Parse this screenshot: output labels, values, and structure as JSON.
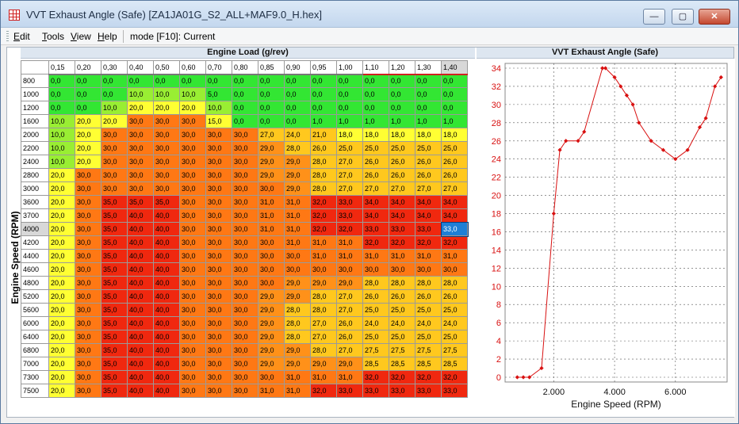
{
  "window": {
    "title": "VVT Exhaust Angle (Safe) [ZA1JA01G_S2_ALL+MAF9.0_H.hex]",
    "min_label": "—",
    "max_label": "▢",
    "close_label": "✕"
  },
  "menu": {
    "items": [
      {
        "key": "E",
        "rest": "dit"
      },
      {
        "key": "T",
        "rest": "ools"
      },
      {
        "key": "V",
        "rest": "iew"
      },
      {
        "key": "H",
        "rest": "elp"
      }
    ],
    "mode_label": "mode [F10]: Current"
  },
  "table": {
    "title": "Engine Load (g/rev)",
    "ylabel": "Engine Speed (RPM)",
    "col_headers": [
      "0,15",
      "0,20",
      "0,30",
      "0,40",
      "0,50",
      "0,60",
      "0,70",
      "0,80",
      "0,85",
      "0,90",
      "0,95",
      "1,00",
      "1,10",
      "1,20",
      "1,30",
      "1,40"
    ],
    "row_headers": [
      "800",
      "1000",
      "1200",
      "1600",
      "2000",
      "2200",
      "2400",
      "2800",
      "3000",
      "3600",
      "3700",
      "4000",
      "4200",
      "4400",
      "4600",
      "4800",
      "5200",
      "5600",
      "6000",
      "6400",
      "6800",
      "7000",
      "7300",
      "7500"
    ],
    "cells": [
      [
        "0,0",
        "0,0",
        "0,0",
        "0,0",
        "0,0",
        "0,0",
        "0,0",
        "0,0",
        "0,0",
        "0,0",
        "0,0",
        "0,0",
        "0,0",
        "0,0",
        "0,0",
        "0,0"
      ],
      [
        "0,0",
        "0,0",
        "0,0",
        "10,0",
        "10,0",
        "10,0",
        "5,0",
        "0,0",
        "0,0",
        "0,0",
        "0,0",
        "0,0",
        "0,0",
        "0,0",
        "0,0",
        "0,0"
      ],
      [
        "0,0",
        "0,0",
        "10,0",
        "20,0",
        "20,0",
        "20,0",
        "10,0",
        "0,0",
        "0,0",
        "0,0",
        "0,0",
        "0,0",
        "0,0",
        "0,0",
        "0,0",
        "0,0"
      ],
      [
        "10,0",
        "20,0",
        "20,0",
        "30,0",
        "30,0",
        "30,0",
        "15,0",
        "0,0",
        "0,0",
        "0,0",
        "1,0",
        "1,0",
        "1,0",
        "1,0",
        "1,0",
        "1,0"
      ],
      [
        "10,0",
        "20,0",
        "30,0",
        "30,0",
        "30,0",
        "30,0",
        "30,0",
        "30,0",
        "27,0",
        "24,0",
        "21,0",
        "18,0",
        "18,0",
        "18,0",
        "18,0",
        "18,0"
      ],
      [
        "10,0",
        "20,0",
        "30,0",
        "30,0",
        "30,0",
        "30,0",
        "30,0",
        "30,0",
        "29,0",
        "28,0",
        "26,0",
        "25,0",
        "25,0",
        "25,0",
        "25,0",
        "25,0"
      ],
      [
        "10,0",
        "20,0",
        "30,0",
        "30,0",
        "30,0",
        "30,0",
        "30,0",
        "30,0",
        "29,0",
        "29,0",
        "28,0",
        "27,0",
        "26,0",
        "26,0",
        "26,0",
        "26,0"
      ],
      [
        "20,0",
        "30,0",
        "30,0",
        "30,0",
        "30,0",
        "30,0",
        "30,0",
        "30,0",
        "29,0",
        "29,0",
        "28,0",
        "27,0",
        "26,0",
        "26,0",
        "26,0",
        "26,0"
      ],
      [
        "20,0",
        "30,0",
        "30,0",
        "30,0",
        "30,0",
        "30,0",
        "30,0",
        "30,0",
        "30,0",
        "29,0",
        "28,0",
        "27,0",
        "27,0",
        "27,0",
        "27,0",
        "27,0"
      ],
      [
        "20,0",
        "30,0",
        "35,0",
        "35,0",
        "35,0",
        "30,0",
        "30,0",
        "30,0",
        "31,0",
        "31,0",
        "32,0",
        "33,0",
        "34,0",
        "34,0",
        "34,0",
        "34,0"
      ],
      [
        "20,0",
        "30,0",
        "35,0",
        "40,0",
        "40,0",
        "30,0",
        "30,0",
        "30,0",
        "31,0",
        "31,0",
        "32,0",
        "33,0",
        "34,0",
        "34,0",
        "34,0",
        "34,0"
      ],
      [
        "20,0",
        "30,0",
        "35,0",
        "40,0",
        "40,0",
        "30,0",
        "30,0",
        "30,0",
        "31,0",
        "31,0",
        "32,0",
        "32,0",
        "33,0",
        "33,0",
        "33,0",
        "33,0"
      ],
      [
        "20,0",
        "30,0",
        "35,0",
        "40,0",
        "40,0",
        "30,0",
        "30,0",
        "30,0",
        "30,0",
        "31,0",
        "31,0",
        "31,0",
        "32,0",
        "32,0",
        "32,0",
        "32,0"
      ],
      [
        "20,0",
        "30,0",
        "35,0",
        "40,0",
        "40,0",
        "30,0",
        "30,0",
        "30,0",
        "30,0",
        "30,0",
        "31,0",
        "31,0",
        "31,0",
        "31,0",
        "31,0",
        "31,0"
      ],
      [
        "20,0",
        "30,0",
        "35,0",
        "40,0",
        "40,0",
        "30,0",
        "30,0",
        "30,0",
        "30,0",
        "30,0",
        "30,0",
        "30,0",
        "30,0",
        "30,0",
        "30,0",
        "30,0"
      ],
      [
        "20,0",
        "30,0",
        "35,0",
        "40,0",
        "40,0",
        "30,0",
        "30,0",
        "30,0",
        "30,0",
        "29,0",
        "29,0",
        "29,0",
        "28,0",
        "28,0",
        "28,0",
        "28,0"
      ],
      [
        "20,0",
        "30,0",
        "35,0",
        "40,0",
        "40,0",
        "30,0",
        "30,0",
        "30,0",
        "29,0",
        "29,0",
        "28,0",
        "27,0",
        "26,0",
        "26,0",
        "26,0",
        "26,0"
      ],
      [
        "20,0",
        "30,0",
        "35,0",
        "40,0",
        "40,0",
        "30,0",
        "30,0",
        "30,0",
        "29,0",
        "28,0",
        "28,0",
        "27,0",
        "25,0",
        "25,0",
        "25,0",
        "25,0"
      ],
      [
        "20,0",
        "30,0",
        "35,0",
        "40,0",
        "40,0",
        "30,0",
        "30,0",
        "30,0",
        "29,0",
        "28,0",
        "27,0",
        "26,0",
        "24,0",
        "24,0",
        "24,0",
        "24,0"
      ],
      [
        "20,0",
        "30,0",
        "35,0",
        "40,0",
        "40,0",
        "30,0",
        "30,0",
        "30,0",
        "29,0",
        "28,0",
        "27,0",
        "26,0",
        "25,0",
        "25,0",
        "25,0",
        "25,0"
      ],
      [
        "20,0",
        "30,0",
        "35,0",
        "40,0",
        "40,0",
        "30,0",
        "30,0",
        "30,0",
        "29,0",
        "29,0",
        "28,0",
        "27,0",
        "27,5",
        "27,5",
        "27,5",
        "27,5"
      ],
      [
        "20,0",
        "30,0",
        "35,0",
        "40,0",
        "40,0",
        "30,0",
        "30,0",
        "30,0",
        "29,0",
        "29,0",
        "29,0",
        "29,0",
        "28,5",
        "28,5",
        "28,5",
        "28,5"
      ],
      [
        "20,0",
        "30,0",
        "35,0",
        "40,0",
        "40,0",
        "30,0",
        "30,0",
        "30,0",
        "30,0",
        "31,0",
        "31,0",
        "31,0",
        "32,0",
        "32,0",
        "32,0",
        "32,0"
      ],
      [
        "20,0",
        "30,0",
        "35,0",
        "40,0",
        "40,0",
        "30,0",
        "30,0",
        "30,0",
        "31,0",
        "31,0",
        "32,0",
        "33,0",
        "33,0",
        "33,0",
        "33,0",
        "33,0"
      ]
    ],
    "selected_row": 11,
    "selected_col": 15,
    "colors": {
      "green": "#33e633",
      "yellow_green": "#99ee33",
      "yellow": "#ffff33",
      "amber": "#ffc81e",
      "orange": "#ff9119",
      "dark_orange": "#ff7814",
      "red": "#f0280f",
      "cursor": "#1f7fd6"
    }
  },
  "chart_data": {
    "type": "line",
    "title": "VVT Exhaust Angle (Safe)",
    "xlabel": "Engine Speed (RPM)",
    "ylabel": "",
    "x": [
      800,
      1000,
      1200,
      1600,
      2000,
      2200,
      2400,
      2800,
      3000,
      3600,
      3700,
      4000,
      4200,
      4400,
      4600,
      4800,
      5200,
      5600,
      6000,
      6400,
      6800,
      7000,
      7300,
      7500
    ],
    "series": [
      {
        "values": [
          0,
          0,
          0,
          1,
          18,
          25,
          26,
          26,
          27,
          34,
          34,
          33,
          32,
          31,
          30,
          28,
          26,
          25,
          24,
          25,
          27.5,
          28.5,
          32,
          33
        ],
        "color": "#d81010"
      }
    ],
    "xlim": [
      400,
      7700
    ],
    "ylim": [
      0,
      34
    ],
    "x_ticks": [
      2000,
      4000,
      6000
    ],
    "x_tick_labels": [
      "2.000",
      "4.000",
      "6.000"
    ],
    "y_ticks": [
      0,
      2,
      4,
      6,
      8,
      10,
      12,
      14,
      16,
      18,
      20,
      22,
      24,
      26,
      28,
      30,
      32,
      34
    ],
    "grid": true
  }
}
